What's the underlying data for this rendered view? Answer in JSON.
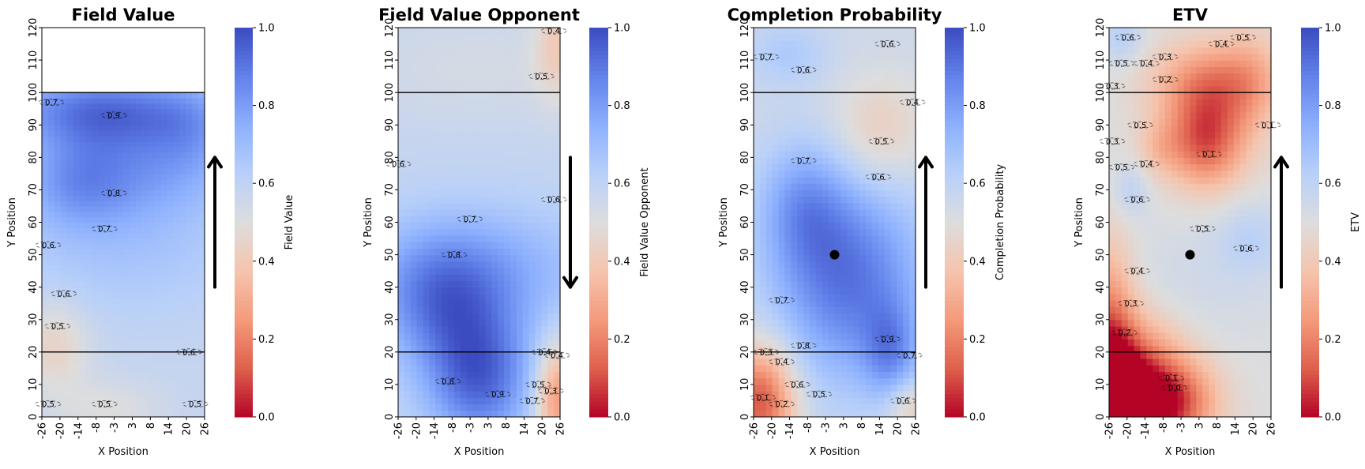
{
  "chart_data": [
    {
      "type": "heatmap",
      "title": "Field Value",
      "xlabel": "X Position",
      "ylabel": "Y Position",
      "colorbar_label": "Field Value",
      "x_ticks": [
        "-26",
        "-20",
        "-14",
        "-8",
        "-3",
        "3",
        "8",
        "14",
        "20",
        "26"
      ],
      "y_ticks": [
        "0",
        "10",
        "20",
        "30",
        "40",
        "50",
        "60",
        "70",
        "80",
        "90",
        "100",
        "110",
        "120"
      ],
      "colorbar_ticks": [
        "0.0",
        "0.2",
        "0.4",
        "0.6",
        "0.8",
        "1.0"
      ],
      "xlim": [
        -26,
        26
      ],
      "ylim": [
        0,
        120
      ],
      "clim": [
        0,
        1
      ],
      "colormap": "coolwarm_r",
      "reference_lines_y": [
        20,
        100
      ],
      "data_y_range": [
        0,
        100
      ],
      "direction_arrow": "up",
      "arrow_y_range": [
        40,
        80
      ],
      "contour_levels": [
        "0.5",
        "0.6",
        "0.7",
        "0.8",
        "0.9"
      ],
      "contour_labels": [
        {
          "text": "0.9",
          "x": -3,
          "y": 93
        },
        {
          "text": "0.8",
          "x": -3,
          "y": 69
        },
        {
          "text": "0.7",
          "x": -6,
          "y": 58
        },
        {
          "text": "0.6",
          "x": -19,
          "y": 38
        },
        {
          "text": "0.5",
          "x": -21,
          "y": 28
        },
        {
          "text": "0.6",
          "x": -24,
          "y": 53
        },
        {
          "text": "0.7",
          "x": -23,
          "y": 97
        },
        {
          "text": "0.6",
          "x": 21,
          "y": 20
        },
        {
          "text": "0.5",
          "x": -6,
          "y": 4
        },
        {
          "text": "0.5",
          "x": -24,
          "y": 4
        },
        {
          "text": "0.5",
          "x": 23,
          "y": 4
        }
      ],
      "blobs": [
        {
          "x": -8,
          "y": 95,
          "a": 0.28,
          "sx": 22,
          "sy": 8
        },
        {
          "x": 5,
          "y": 78,
          "a": 0.2,
          "sx": 22,
          "sy": 13
        },
        {
          "x": -15,
          "y": 72,
          "a": 0.15,
          "sx": 12,
          "sy": 10
        },
        {
          "x": 22,
          "y": 90,
          "a": 0.1,
          "sx": 10,
          "sy": 10
        },
        {
          "x": 0,
          "y": 50,
          "a": 0.08,
          "sx": 28,
          "sy": 14
        },
        {
          "x": -22,
          "y": 22,
          "a": -0.14,
          "sx": 8,
          "sy": 10
        },
        {
          "x": -5,
          "y": 3,
          "a": -0.08,
          "sx": 12,
          "sy": 6
        }
      ],
      "base_value": 0.58
    },
    {
      "type": "heatmap",
      "title": "Field Value Opponent",
      "xlabel": "X Position",
      "ylabel": "Y Position",
      "colorbar_label": "Field Value Opponent",
      "x_ticks": [
        "-26",
        "-20",
        "-14",
        "-8",
        "-3",
        "3",
        "8",
        "14",
        "20",
        "26"
      ],
      "y_ticks": [
        "0",
        "10",
        "20",
        "30",
        "40",
        "50",
        "60",
        "70",
        "80",
        "90",
        "100",
        "110",
        "120"
      ],
      "colorbar_ticks": [
        "0.0",
        "0.2",
        "0.4",
        "0.6",
        "0.8",
        "1.0"
      ],
      "xlim": [
        -26,
        26
      ],
      "ylim": [
        0,
        120
      ],
      "clim": [
        0,
        1
      ],
      "colormap": "coolwarm_r",
      "reference_lines_y": [
        20,
        100
      ],
      "data_y_range": [
        0,
        120
      ],
      "direction_arrow": "down",
      "arrow_y_range": [
        80,
        40
      ],
      "contour_levels": [
        "0.3",
        "0.4",
        "0.5",
        "0.6",
        "0.7",
        "0.8",
        "0.9"
      ],
      "contour_labels": [
        {
          "text": "0.8",
          "x": -8,
          "y": 50
        },
        {
          "text": "0.7",
          "x": -3,
          "y": 61
        },
        {
          "text": "0.6",
          "x": -26,
          "y": 78
        },
        {
          "text": "0.6",
          "x": 24,
          "y": 67
        },
        {
          "text": "0.5",
          "x": 20,
          "y": 105
        },
        {
          "text": "0.4",
          "x": 24,
          "y": 119
        },
        {
          "text": "0.8",
          "x": -10,
          "y": 11
        },
        {
          "text": "0.9",
          "x": 6,
          "y": 7
        },
        {
          "text": "0.7",
          "x": 17,
          "y": 5
        },
        {
          "text": "0.5",
          "x": 19,
          "y": 10
        },
        {
          "text": "0.3",
          "x": 23,
          "y": 8
        },
        {
          "text": "0.4",
          "x": 25,
          "y": 19
        },
        {
          "text": "0.4",
          "x": 21,
          "y": 20
        }
      ],
      "blobs": [
        {
          "x": 0,
          "y": 12,
          "a": 0.35,
          "sx": 12,
          "sy": 14
        },
        {
          "x": -12,
          "y": 35,
          "a": 0.22,
          "sx": 14,
          "sy": 14
        },
        {
          "x": 0,
          "y": 45,
          "a": 0.18,
          "sx": 26,
          "sy": 14
        },
        {
          "x": 25,
          "y": 6,
          "a": -0.34,
          "sx": 5,
          "sy": 12
        },
        {
          "x": 25,
          "y": 115,
          "a": -0.15,
          "sx": 5,
          "sy": 12
        },
        {
          "x": 0,
          "y": 108,
          "a": -0.05,
          "sx": 28,
          "sy": 12
        }
      ],
      "base_value": 0.58
    },
    {
      "type": "heatmap",
      "title": "Completion Probability",
      "xlabel": "X Position",
      "ylabel": "Y Position",
      "colorbar_label": "Completion Probability",
      "x_ticks": [
        "-26",
        "-20",
        "-14",
        "-8",
        "-3",
        "3",
        "8",
        "14",
        "20",
        "26"
      ],
      "y_ticks": [
        "0",
        "10",
        "20",
        "30",
        "40",
        "50",
        "60",
        "70",
        "80",
        "90",
        "100",
        "110",
        "120"
      ],
      "colorbar_ticks": [
        "0.0",
        "0.2",
        "0.4",
        "0.6",
        "0.8",
        "1.0"
      ],
      "xlim": [
        -26,
        26
      ],
      "ylim": [
        0,
        120
      ],
      "clim": [
        0,
        1
      ],
      "colormap": "coolwarm_r",
      "reference_lines_y": [
        20,
        100
      ],
      "data_y_range": [
        0,
        120
      ],
      "direction_arrow": "up",
      "arrow_y_range": [
        40,
        80
      ],
      "marker": {
        "x": 0,
        "y": 50
      },
      "contour_levels": [
        "0.1",
        "0.2",
        "0.3",
        "0.4",
        "0.5",
        "0.6",
        "0.7",
        "0.8",
        "0.9"
      ],
      "contour_labels": [
        {
          "text": "0.7",
          "x": -22,
          "y": 111
        },
        {
          "text": "0.6",
          "x": -10,
          "y": 107
        },
        {
          "text": "0.6",
          "x": 17,
          "y": 115
        },
        {
          "text": "0.4",
          "x": 25,
          "y": 97
        },
        {
          "text": "0.5",
          "x": 15,
          "y": 85
        },
        {
          "text": "0.6",
          "x": 14,
          "y": 74
        },
        {
          "text": "0.7",
          "x": -10,
          "y": 79
        },
        {
          "text": "0.7",
          "x": -17,
          "y": 36
        },
        {
          "text": "0.8",
          "x": -10,
          "y": 22
        },
        {
          "text": "0.6",
          "x": -12,
          "y": 10
        },
        {
          "text": "0.5",
          "x": -5,
          "y": 7
        },
        {
          "text": "0.3",
          "x": -22,
          "y": 20
        },
        {
          "text": "0.4",
          "x": -17,
          "y": 17
        },
        {
          "text": "0.1",
          "x": -23,
          "y": 6
        },
        {
          "text": "0.2",
          "x": -17,
          "y": 4
        },
        {
          "text": "0.9",
          "x": 17,
          "y": 24
        },
        {
          "text": "0.7",
          "x": 24,
          "y": 19
        },
        {
          "text": "0.6",
          "x": 22,
          "y": 5
        }
      ],
      "blobs": [
        {
          "x": 5,
          "y": 42,
          "a": 0.35,
          "sx": 17,
          "sy": 22
        },
        {
          "x": -10,
          "y": 65,
          "a": 0.2,
          "sx": 10,
          "sy": 14
        },
        {
          "x": 18,
          "y": 20,
          "a": 0.2,
          "sx": 6,
          "sy": 10
        },
        {
          "x": -15,
          "y": 112,
          "a": 0.1,
          "sx": 9,
          "sy": 7
        },
        {
          "x": -24,
          "y": 5,
          "a": -0.45,
          "sx": 8,
          "sy": 12
        },
        {
          "x": 14,
          "y": 88,
          "a": -0.14,
          "sx": 11,
          "sy": 12
        },
        {
          "x": 24,
          "y": 3,
          "a": -0.15,
          "sx": 5,
          "sy": 6
        }
      ],
      "base_value": 0.55
    },
    {
      "type": "heatmap",
      "title": "ETV",
      "xlabel": "X Position",
      "ylabel": "Y Position",
      "colorbar_label": "ETV",
      "x_ticks": [
        "-26",
        "-20",
        "-14",
        "-8",
        "-3",
        "3",
        "8",
        "14",
        "20",
        "26"
      ],
      "y_ticks": [
        "0",
        "10",
        "20",
        "30",
        "40",
        "50",
        "60",
        "70",
        "80",
        "90",
        "100",
        "110",
        "120"
      ],
      "colorbar_ticks": [
        "0.0",
        "0.2",
        "0.4",
        "0.6",
        "0.8",
        "1.0"
      ],
      "xlim": [
        -26,
        26
      ],
      "ylim": [
        0,
        120
      ],
      "clim": [
        0,
        1
      ],
      "colormap": "coolwarm_r",
      "reference_lines_y": [
        20,
        100
      ],
      "data_y_range": [
        0,
        120
      ],
      "direction_arrow": "up",
      "arrow_y_range": [
        40,
        80
      ],
      "marker": {
        "x": 0,
        "y": 50
      },
      "contour_levels": [
        "0.1",
        "0.2",
        "0.3",
        "0.4",
        "0.5",
        "0.6"
      ],
      "contour_labels": [
        {
          "text": "0.6",
          "x": -20,
          "y": 117
        },
        {
          "text": "0.5",
          "x": -22,
          "y": 109
        },
        {
          "text": "0.4",
          "x": -14,
          "y": 109
        },
        {
          "text": "0.3",
          "x": -8,
          "y": 111
        },
        {
          "text": "0.2",
          "x": -8,
          "y": 104
        },
        {
          "text": "0.4",
          "x": 10,
          "y": 115
        },
        {
          "text": "0.5",
          "x": 17,
          "y": 117
        },
        {
          "text": "0.3",
          "x": -25,
          "y": 102
        },
        {
          "text": "0.5",
          "x": -16,
          "y": 90
        },
        {
          "text": "0.3",
          "x": -25,
          "y": 85
        },
        {
          "text": "0.5",
          "x": -22,
          "y": 77
        },
        {
          "text": "0.4",
          "x": -14,
          "y": 78
        },
        {
          "text": "0.6",
          "x": -17,
          "y": 67
        },
        {
          "text": "0.1",
          "x": 25,
          "y": 90
        },
        {
          "text": "0.1",
          "x": 6,
          "y": 81
        },
        {
          "text": "0.5",
          "x": 4,
          "y": 58
        },
        {
          "text": "0.6",
          "x": 18,
          "y": 52
        },
        {
          "text": "0.4",
          "x": -17,
          "y": 45
        },
        {
          "text": "0.3",
          "x": -19,
          "y": 35
        },
        {
          "text": "0.2",
          "x": -21,
          "y": 26
        },
        {
          "text": "0.1",
          "x": -6,
          "y": 12
        },
        {
          "text": "0.0",
          "x": -5,
          "y": 9
        }
      ],
      "blobs": [
        {
          "x": 5,
          "y": 85,
          "a": -0.38,
          "sx": 9,
          "sy": 10
        },
        {
          "x": 7,
          "y": 103,
          "a": -0.28,
          "sx": 13,
          "sy": 9
        },
        {
          "x": -10,
          "y": 83,
          "a": -0.1,
          "sx": 5,
          "sy": 6
        },
        {
          "x": -20,
          "y": 5,
          "a": -0.65,
          "sx": 13,
          "sy": 15
        },
        {
          "x": -26,
          "y": 25,
          "a": -0.3,
          "sx": 6,
          "sy": 20
        },
        {
          "x": -3,
          "y": 5,
          "a": -0.2,
          "sx": 9,
          "sy": 8
        },
        {
          "x": -19,
          "y": 70,
          "a": 0.1,
          "sx": 4,
          "sy": 6
        },
        {
          "x": -22,
          "y": 117,
          "a": 0.12,
          "sx": 5,
          "sy": 6
        },
        {
          "x": 20,
          "y": 55,
          "a": 0.1,
          "sx": 8,
          "sy": 8
        },
        {
          "x": 20,
          "y": 104,
          "a": -0.1,
          "sx": 7,
          "sy": 12
        },
        {
          "x": 0,
          "y": 40,
          "a": 0.05,
          "sx": 20,
          "sy": 15
        }
      ],
      "base_value": 0.5
    }
  ]
}
